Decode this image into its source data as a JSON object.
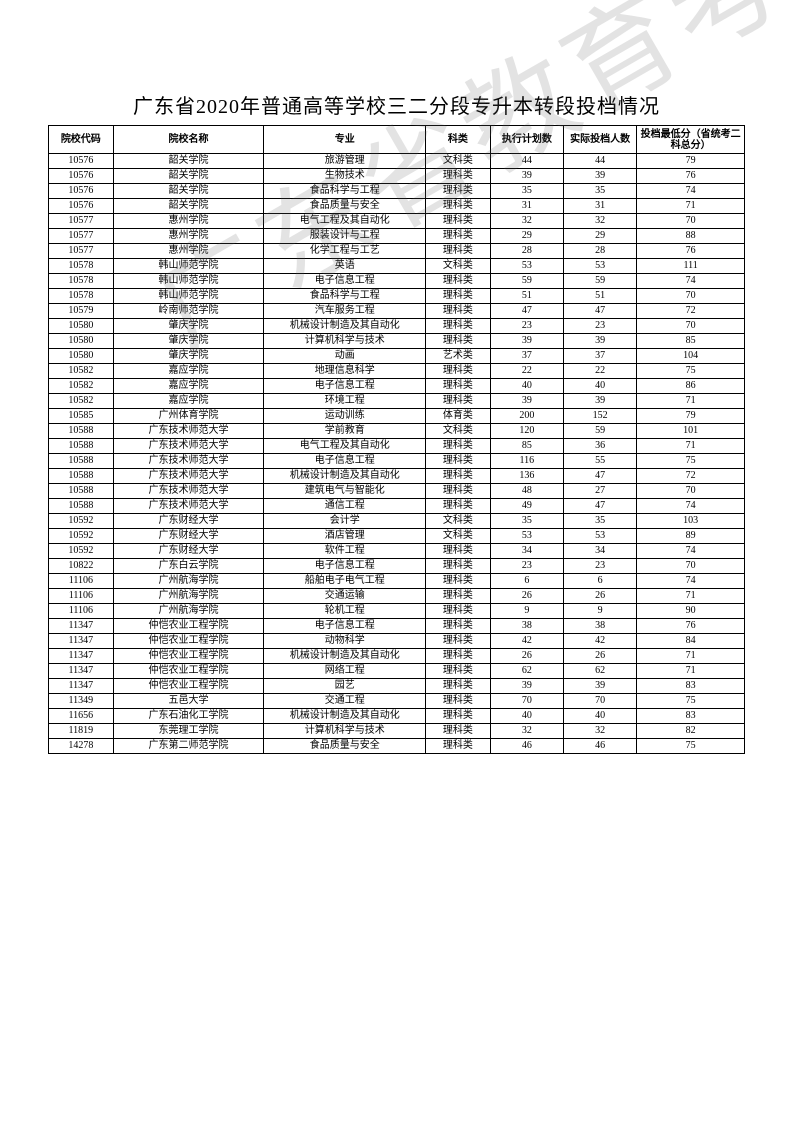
{
  "title": "广东省2020年普通高等学校三二分段专升本转段投档情况",
  "watermark": "广东省教育考试院",
  "table": {
    "columns": [
      "院校代码",
      "院校名称",
      "专业",
      "科类",
      "执行计划数",
      "实际投档人数",
      "投档最低分（省统考二科总分）"
    ],
    "rows": [
      [
        "10576",
        "韶关学院",
        "旅游管理",
        "文科类",
        "44",
        "44",
        "79"
      ],
      [
        "10576",
        "韶关学院",
        "生物技术",
        "理科类",
        "39",
        "39",
        "76"
      ],
      [
        "10576",
        "韶关学院",
        "食品科学与工程",
        "理科类",
        "35",
        "35",
        "74"
      ],
      [
        "10576",
        "韶关学院",
        "食品质量与安全",
        "理科类",
        "31",
        "31",
        "71"
      ],
      [
        "10577",
        "惠州学院",
        "电气工程及其自动化",
        "理科类",
        "32",
        "32",
        "70"
      ],
      [
        "10577",
        "惠州学院",
        "服装设计与工程",
        "理科类",
        "29",
        "29",
        "88"
      ],
      [
        "10577",
        "惠州学院",
        "化学工程与工艺",
        "理科类",
        "28",
        "28",
        "76"
      ],
      [
        "10578",
        "韩山师范学院",
        "英语",
        "文科类",
        "53",
        "53",
        "111"
      ],
      [
        "10578",
        "韩山师范学院",
        "电子信息工程",
        "理科类",
        "59",
        "59",
        "74"
      ],
      [
        "10578",
        "韩山师范学院",
        "食品科学与工程",
        "理科类",
        "51",
        "51",
        "70"
      ],
      [
        "10579",
        "岭南师范学院",
        "汽车服务工程",
        "理科类",
        "47",
        "47",
        "72"
      ],
      [
        "10580",
        "肇庆学院",
        "机械设计制造及其自动化",
        "理科类",
        "23",
        "23",
        "70"
      ],
      [
        "10580",
        "肇庆学院",
        "计算机科学与技术",
        "理科类",
        "39",
        "39",
        "85"
      ],
      [
        "10580",
        "肇庆学院",
        "动画",
        "艺术类",
        "37",
        "37",
        "104"
      ],
      [
        "10582",
        "嘉应学院",
        "地理信息科学",
        "理科类",
        "22",
        "22",
        "75"
      ],
      [
        "10582",
        "嘉应学院",
        "电子信息工程",
        "理科类",
        "40",
        "40",
        "86"
      ],
      [
        "10582",
        "嘉应学院",
        "环境工程",
        "理科类",
        "39",
        "39",
        "71"
      ],
      [
        "10585",
        "广州体育学院",
        "运动训练",
        "体育类",
        "200",
        "152",
        "79"
      ],
      [
        "10588",
        "广东技术师范大学",
        "学前教育",
        "文科类",
        "120",
        "59",
        "101"
      ],
      [
        "10588",
        "广东技术师范大学",
        "电气工程及其自动化",
        "理科类",
        "85",
        "36",
        "71"
      ],
      [
        "10588",
        "广东技术师范大学",
        "电子信息工程",
        "理科类",
        "116",
        "55",
        "75"
      ],
      [
        "10588",
        "广东技术师范大学",
        "机械设计制造及其自动化",
        "理科类",
        "136",
        "47",
        "72"
      ],
      [
        "10588",
        "广东技术师范大学",
        "建筑电气与智能化",
        "理科类",
        "48",
        "27",
        "70"
      ],
      [
        "10588",
        "广东技术师范大学",
        "通信工程",
        "理科类",
        "49",
        "47",
        "74"
      ],
      [
        "10592",
        "广东财经大学",
        "会计学",
        "文科类",
        "35",
        "35",
        "103"
      ],
      [
        "10592",
        "广东财经大学",
        "酒店管理",
        "文科类",
        "53",
        "53",
        "89"
      ],
      [
        "10592",
        "广东财经大学",
        "软件工程",
        "理科类",
        "34",
        "34",
        "74"
      ],
      [
        "10822",
        "广东白云学院",
        "电子信息工程",
        "理科类",
        "23",
        "23",
        "70"
      ],
      [
        "11106",
        "广州航海学院",
        "船舶电子电气工程",
        "理科类",
        "6",
        "6",
        "74"
      ],
      [
        "11106",
        "广州航海学院",
        "交通运输",
        "理科类",
        "26",
        "26",
        "71"
      ],
      [
        "11106",
        "广州航海学院",
        "轮机工程",
        "理科类",
        "9",
        "9",
        "90"
      ],
      [
        "11347",
        "仲恺农业工程学院",
        "电子信息工程",
        "理科类",
        "38",
        "38",
        "76"
      ],
      [
        "11347",
        "仲恺农业工程学院",
        "动物科学",
        "理科类",
        "42",
        "42",
        "84"
      ],
      [
        "11347",
        "仲恺农业工程学院",
        "机械设计制造及其自动化",
        "理科类",
        "26",
        "26",
        "71"
      ],
      [
        "11347",
        "仲恺农业工程学院",
        "网络工程",
        "理科类",
        "62",
        "62",
        "71"
      ],
      [
        "11347",
        "仲恺农业工程学院",
        "园艺",
        "理科类",
        "39",
        "39",
        "83"
      ],
      [
        "11349",
        "五邑大学",
        "交通工程",
        "理科类",
        "70",
        "70",
        "75"
      ],
      [
        "11656",
        "广东石油化工学院",
        "机械设计制造及其自动化",
        "理科类",
        "40",
        "40",
        "83"
      ],
      [
        "11819",
        "东莞理工学院",
        "计算机科学与技术",
        "理科类",
        "32",
        "32",
        "82"
      ],
      [
        "14278",
        "广东第二师范学院",
        "食品质量与安全",
        "理科类",
        "46",
        "46",
        "75"
      ]
    ]
  }
}
